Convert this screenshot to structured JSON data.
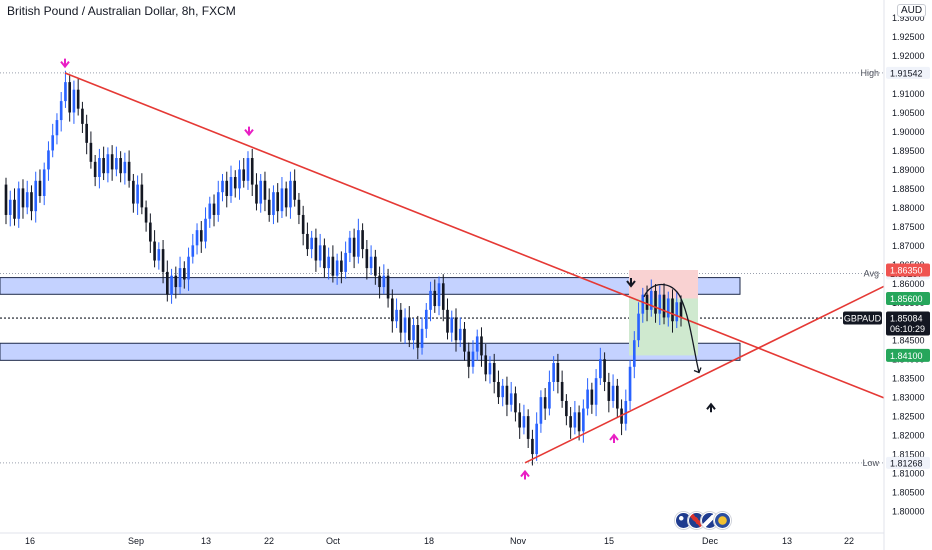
{
  "header": {
    "title": "British Pound / Australian Dollar, 8h, FXCM",
    "currency": "AUD"
  },
  "colors": {
    "candle_up": "#2962ff",
    "candle_down": "#131722",
    "trendline": "#e53935",
    "zone_fill": "#c4d2ff",
    "zone_border": "#1e2a4a",
    "arrow_down": "#e91ec4",
    "arrow_up": "#e91ec4",
    "target_fill": "#cfe9cf",
    "stop_fill": "#f9d2d2",
    "label_green": "#26a65b",
    "label_red": "#ef5350",
    "label_dark": "#131722"
  },
  "chart_data": {
    "type": "candlestick",
    "symbol": "GBPAUD",
    "interval": "8h",
    "x_ticks": [
      "16",
      "Sep",
      "13",
      "22",
      "Oct",
      "18",
      "Nov",
      "15",
      "Dec",
      "13",
      "22"
    ],
    "y_ticks": [
      "1.80000",
      "1.80500",
      "1.81000",
      "1.81500",
      "1.82000",
      "1.82500",
      "1.83000",
      "1.83500",
      "1.84000",
      "1.84500",
      "1.85000",
      "1.85500",
      "1.86000",
      "1.86500",
      "1.87000",
      "1.87500",
      "1.88000",
      "1.88500",
      "1.89000",
      "1.89500",
      "1.90000",
      "1.90500",
      "1.91000",
      "1.91500",
      "1.92000",
      "1.92500",
      "1.93000"
    ],
    "y_range": [
      1.795,
      1.932
    ],
    "levels": {
      "high": {
        "label": "High",
        "value": "1.91542",
        "y": 1.91542
      },
      "avg": {
        "label": "Avg",
        "value": "1.86257",
        "y": 1.86257
      },
      "low": {
        "label": "Low",
        "value": "1.81268",
        "y": 1.81268
      },
      "stop": {
        "value": "1.86350",
        "y": 1.8635
      },
      "entry": {
        "value": "1.85600",
        "y": 1.856
      },
      "target": {
        "value": "1.84100",
        "y": 1.841
      },
      "current": {
        "symbol": "GBPAUD",
        "value": "1.85084",
        "countdown": "06:10:29",
        "y": 1.85084
      }
    },
    "zones": [
      {
        "name": "resistance-zone",
        "y_top": 1.8615,
        "y_bottom": 1.8571
      },
      {
        "name": "support-zone",
        "y_top": 1.8442,
        "y_bottom": 1.8397
      }
    ],
    "candles": [
      [
        1.886,
        1.878
      ],
      [
        1.878,
        1.882
      ],
      [
        1.882,
        1.877
      ],
      [
        1.877,
        1.885
      ],
      [
        1.885,
        1.88
      ],
      [
        1.88,
        1.884
      ],
      [
        1.884,
        1.879
      ],
      [
        1.879,
        1.887
      ],
      [
        1.887,
        1.883
      ],
      [
        1.883,
        1.89
      ],
      [
        1.89,
        1.895
      ],
      [
        1.895,
        1.899
      ],
      [
        1.899,
        1.903
      ],
      [
        1.903,
        1.908
      ],
      [
        1.908,
        1.913
      ],
      [
        1.913,
        1.905
      ],
      [
        1.905,
        1.911
      ],
      [
        1.911,
        1.906
      ],
      [
        1.906,
        1.902
      ],
      [
        1.902,
        1.897
      ],
      [
        1.897,
        1.892
      ],
      [
        1.892,
        1.888
      ],
      [
        1.888,
        1.893
      ],
      [
        1.893,
        1.889
      ],
      [
        1.889,
        1.894
      ],
      [
        1.894,
        1.89
      ],
      [
        1.89,
        1.893
      ],
      [
        1.893,
        1.889
      ],
      [
        1.889,
        1.892
      ],
      [
        1.892,
        1.887
      ],
      [
        1.887,
        1.881
      ],
      [
        1.881,
        1.886
      ],
      [
        1.886,
        1.88
      ],
      [
        1.88,
        1.876
      ],
      [
        1.876,
        1.871
      ],
      [
        1.871,
        1.866
      ],
      [
        1.866,
        1.869
      ],
      [
        1.869,
        1.863
      ],
      [
        1.863,
        1.857
      ],
      [
        1.857,
        1.862
      ],
      [
        1.862,
        1.859
      ],
      [
        1.859,
        1.864
      ],
      [
        1.864,
        1.861
      ],
      [
        1.861,
        1.867
      ],
      [
        1.867,
        1.87
      ],
      [
        1.87,
        1.874
      ],
      [
        1.874,
        1.871
      ],
      [
        1.871,
        1.877
      ],
      [
        1.877,
        1.881
      ],
      [
        1.881,
        1.878
      ],
      [
        1.878,
        1.884
      ],
      [
        1.884,
        1.887
      ],
      [
        1.887,
        1.883
      ],
      [
        1.883,
        1.888
      ],
      [
        1.888,
        1.885
      ],
      [
        1.885,
        1.89
      ],
      [
        1.89,
        1.887
      ],
      [
        1.887,
        1.893
      ],
      [
        1.893,
        1.886
      ],
      [
        1.886,
        1.881
      ],
      [
        1.881,
        1.887
      ],
      [
        1.887,
        1.882
      ],
      [
        1.882,
        1.878
      ],
      [
        1.878,
        1.884
      ],
      [
        1.884,
        1.879
      ],
      [
        1.879,
        1.885
      ],
      [
        1.885,
        1.88
      ],
      [
        1.88,
        1.887
      ],
      [
        1.887,
        1.882
      ],
      [
        1.882,
        1.878
      ],
      [
        1.878,
        1.873
      ],
      [
        1.873,
        1.869
      ],
      [
        1.869,
        1.872
      ],
      [
        1.872,
        1.866
      ],
      [
        1.866,
        1.87
      ],
      [
        1.87,
        1.864
      ],
      [
        1.864,
        1.867
      ],
      [
        1.867,
        1.862
      ],
      [
        1.862,
        1.866
      ],
      [
        1.866,
        1.863
      ],
      [
        1.863,
        1.868
      ],
      [
        1.868,
        1.872
      ],
      [
        1.872,
        1.867
      ],
      [
        1.867,
        1.874
      ],
      [
        1.874,
        1.869
      ],
      [
        1.869,
        1.864
      ],
      [
        1.864,
        1.867
      ],
      [
        1.867,
        1.862
      ],
      [
        1.862,
        1.859
      ],
      [
        1.859,
        1.862
      ],
      [
        1.862,
        1.856
      ],
      [
        1.856,
        1.85
      ],
      [
        1.85,
        1.853
      ],
      [
        1.853,
        1.847
      ],
      [
        1.847,
        1.851
      ],
      [
        1.851,
        1.845
      ],
      [
        1.845,
        1.849
      ],
      [
        1.849,
        1.843
      ],
      [
        1.843,
        1.848
      ],
      [
        1.848,
        1.853
      ],
      [
        1.853,
        1.858
      ],
      [
        1.858,
        1.854
      ],
      [
        1.854,
        1.86
      ],
      [
        1.86,
        1.853
      ],
      [
        1.853,
        1.847
      ],
      [
        1.847,
        1.851
      ],
      [
        1.851,
        1.845
      ],
      [
        1.845,
        1.848
      ],
      [
        1.848,
        1.842
      ],
      [
        1.842,
        1.838
      ],
      [
        1.838,
        1.842
      ],
      [
        1.842,
        1.846
      ],
      [
        1.846,
        1.841
      ],
      [
        1.841,
        1.836
      ],
      [
        1.836,
        1.839
      ],
      [
        1.839,
        1.834
      ],
      [
        1.834,
        1.83
      ],
      [
        1.83,
        1.833
      ],
      [
        1.833,
        1.828
      ],
      [
        1.828,
        1.831
      ],
      [
        1.831,
        1.826
      ],
      [
        1.826,
        1.822
      ],
      [
        1.822,
        1.825
      ],
      [
        1.825,
        1.819
      ],
      [
        1.819,
        1.815
      ],
      [
        1.815,
        1.823
      ],
      [
        1.823,
        1.83
      ],
      [
        1.83,
        1.827
      ],
      [
        1.827,
        1.834
      ],
      [
        1.834,
        1.839
      ],
      [
        1.839,
        1.834
      ],
      [
        1.834,
        1.829
      ],
      [
        1.829,
        1.825
      ],
      [
        1.825,
        1.822
      ],
      [
        1.822,
        1.826
      ],
      [
        1.826,
        1.821
      ],
      [
        1.821,
        1.827
      ],
      [
        1.827,
        1.832
      ],
      [
        1.832,
        1.828
      ],
      [
        1.828,
        1.835
      ],
      [
        1.835,
        1.84
      ],
      [
        1.84,
        1.834
      ],
      [
        1.834,
        1.829
      ],
      [
        1.829,
        1.833
      ],
      [
        1.833,
        1.827
      ],
      [
        1.827,
        1.823
      ],
      [
        1.823,
        1.829
      ],
      [
        1.829,
        1.838
      ],
      [
        1.838,
        1.845
      ],
      [
        1.845,
        1.852
      ],
      [
        1.852,
        1.857
      ],
      [
        1.857,
        1.853
      ],
      [
        1.853,
        1.858
      ],
      [
        1.858,
        1.852
      ],
      [
        1.852,
        1.857
      ],
      [
        1.857,
        1.851
      ],
      [
        1.851,
        1.856
      ],
      [
        1.856,
        1.85
      ],
      [
        1.85,
        1.855
      ],
      [
        1.855,
        1.851
      ]
    ],
    "candle_x_start": 6,
    "candle_x_end": 681,
    "trendlines": [
      {
        "name": "descending-trendline",
        "from": [
          65,
          1.9154
        ],
        "to": [
          884,
          1.8298
        ]
      },
      {
        "name": "ascending-trendline",
        "from": [
          525,
          1.8127
        ],
        "to": [
          884,
          1.8592
        ]
      }
    ],
    "markers_down": [
      [
        65,
        1.9176
      ],
      [
        249,
        1.8997
      ],
      [
        631,
        1.8598
      ]
    ],
    "markers_up": [
      [
        525,
        1.8099
      ],
      [
        614,
        1.8195
      ],
      [
        711,
        1.8276
      ]
    ]
  }
}
